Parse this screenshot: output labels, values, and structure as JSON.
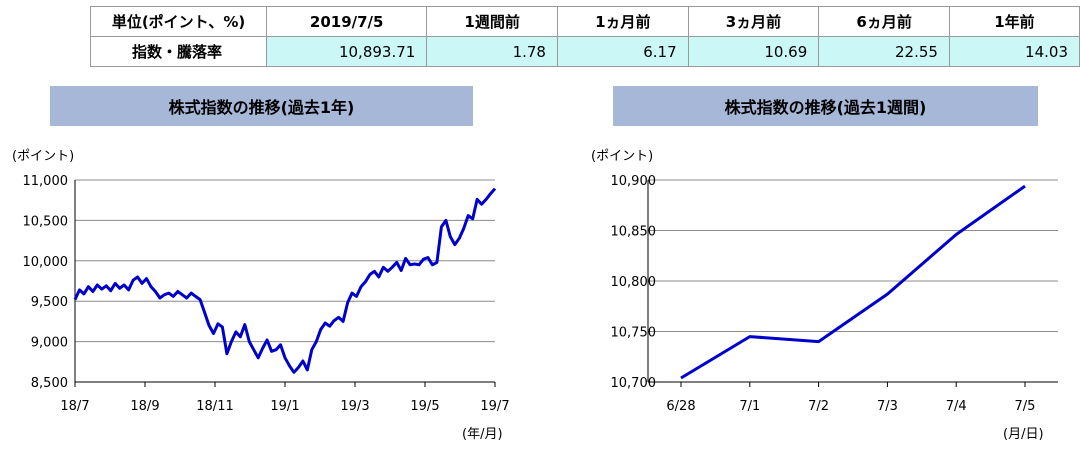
{
  "table": {
    "headers": [
      "単位(ポイント、%)",
      "2019/7/5",
      "1週間前",
      "1ヵ月前",
      "3ヵ月前",
      "6ヵ月前",
      "1年前"
    ],
    "row_label": "指数・騰落率",
    "values": [
      "10,893.71",
      "1.78",
      "6.17",
      "10.69",
      "22.55",
      "14.03"
    ],
    "value_bg_color": "#ccf7f7"
  },
  "chart_data": [
    {
      "type": "line",
      "title": "株式指数の推移(過去1年)",
      "ylabel": "(ポイント)",
      "xlabel": "(年/月)",
      "ylim": [
        8500,
        11000
      ],
      "yticks": [
        8500,
        9000,
        9500,
        10000,
        10500,
        11000
      ],
      "ytick_labels": [
        "8,500",
        "9,000",
        "9,500",
        "10,000",
        "10,500",
        "11,000"
      ],
      "xticks": [
        "18/7",
        "18/9",
        "18/11",
        "19/1",
        "19/3",
        "19/5",
        "19/7"
      ],
      "grid": true,
      "line_color": "#0000cc",
      "series": [
        {
          "values": [
            9520,
            9640,
            9590,
            9680,
            9620,
            9700,
            9650,
            9690,
            9630,
            9720,
            9660,
            9700,
            9640,
            9760,
            9800,
            9720,
            9780,
            9680,
            9620,
            9540,
            9580,
            9600,
            9560,
            9620,
            9580,
            9540,
            9600,
            9560,
            9520,
            9360,
            9200,
            9100,
            9220,
            9180,
            8850,
            9000,
            9120,
            9060,
            9210,
            9000,
            8900,
            8800,
            8920,
            9020,
            8880,
            8900,
            8960,
            8800,
            8700,
            8620,
            8680,
            8760,
            8650,
            8900,
            9000,
            9150,
            9230,
            9190,
            9260,
            9300,
            9250,
            9480,
            9600,
            9560,
            9680,
            9740,
            9830,
            9870,
            9800,
            9920,
            9870,
            9920,
            9980,
            9880,
            10030,
            9950,
            9960,
            9950,
            10020,
            10040,
            9950,
            9980,
            10420,
            10500,
            10300,
            10200,
            10280,
            10400,
            10560,
            10520,
            10760,
            10700,
            10760,
            10830,
            10894
          ]
        }
      ]
    },
    {
      "type": "line",
      "title": "株式指数の推移(過去1週間)",
      "ylabel": "(ポイント)",
      "xlabel": "(月/日)",
      "ylim": [
        10700,
        10900
      ],
      "yticks": [
        10700,
        10750,
        10800,
        10850,
        10900
      ],
      "ytick_labels": [
        "10,700",
        "10,750",
        "10,800",
        "10,850",
        "10,900"
      ],
      "categories": [
        "6/28",
        "7/1",
        "7/2",
        "7/3",
        "7/4",
        "7/5"
      ],
      "grid": true,
      "line_color": "#0000cc",
      "series": [
        {
          "values": [
            10704,
            10745,
            10740,
            10787,
            10846,
            10894
          ]
        }
      ]
    }
  ]
}
